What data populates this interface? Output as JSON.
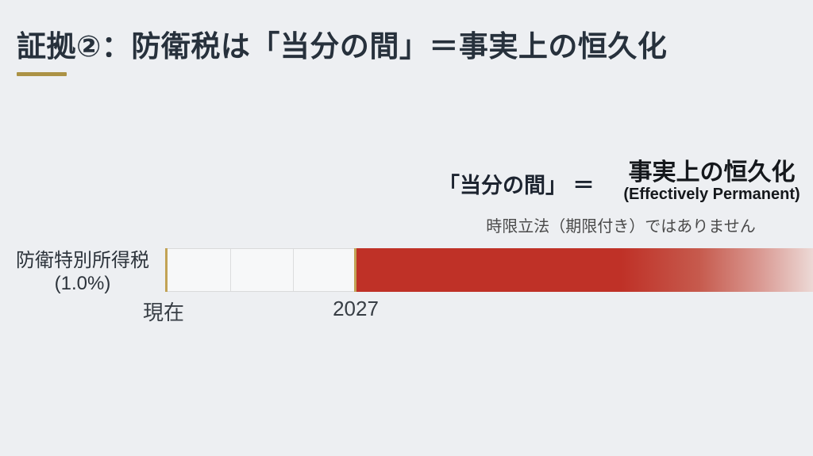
{
  "slide": {
    "title": "証拠②：防衛税は「当分の間」＝事実上の恒久化"
  },
  "annotation": {
    "term": "「当分の間」 ＝",
    "conclusion_jp": "事実上の恒久化",
    "conclusion_en": "(Effectively Permanent)",
    "note": "時限立法（期限付き）ではありません"
  },
  "chart_data": {
    "type": "bar",
    "subtype": "horizontal-timeline",
    "row_label_line1": "防衛特別所得税",
    "row_label_line2": "(1.0%)",
    "x_ticks": [
      "現在",
      "2027"
    ],
    "segments": [
      {
        "from": "現在",
        "to": "2027",
        "fill": "white-outlined",
        "sub_divisions": 3,
        "relative_width": 0.29
      },
      {
        "from": "2027",
        "to": null,
        "open_ended": true,
        "fill": "red-gradient-fading-right",
        "relative_width": 0.71
      }
    ],
    "annotations": [
      "「当分の間」 ＝ 事実上の恒久化 (Effectively Permanent)",
      "時限立法（期限付き）ではありません"
    ],
    "legend": "none",
    "grid": "off"
  },
  "colors": {
    "background": "#edeff2",
    "title_text": "#27313c",
    "accent_gold": "#ab9245",
    "tick_gold": "#c2a355",
    "bar_red": "#bf3127",
    "bar_red_fade_end": "#ecd9d6",
    "bar_white": "#f7f8f9",
    "bar_border": "#d9dadb",
    "note_gray": "#4a4a4a",
    "tick_label_text": "#383e45"
  }
}
